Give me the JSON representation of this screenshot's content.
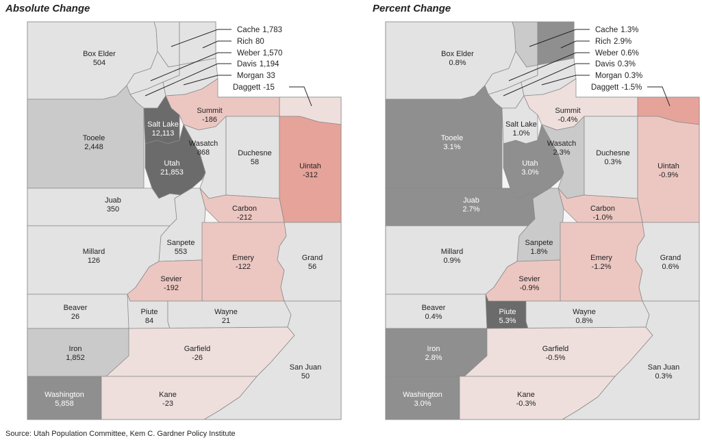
{
  "maps": [
    {
      "title": "Absolute Change",
      "counties": [
        {
          "id": "boxelder",
          "name": "Box Elder",
          "value": "504",
          "class": "g1"
        },
        {
          "id": "cache",
          "name": "Cache",
          "value": "1,783",
          "class": "g1"
        },
        {
          "id": "rich",
          "name": "Rich",
          "value": "80",
          "class": "g1"
        },
        {
          "id": "weber",
          "name": "Weber",
          "value": "1,570",
          "class": "g1"
        },
        {
          "id": "davis",
          "name": "Davis",
          "value": "1,194",
          "class": "g1"
        },
        {
          "id": "morgan",
          "name": "Morgan",
          "value": "33",
          "class": "g1"
        },
        {
          "id": "daggett",
          "name": "Daggett",
          "value": "-15",
          "class": "n1"
        },
        {
          "id": "summit",
          "name": "Summit",
          "value": "-186",
          "class": "n2"
        },
        {
          "id": "tooele",
          "name": "Tooele",
          "value": "2,448",
          "class": "g2"
        },
        {
          "id": "saltlake",
          "name": "Salt Lake",
          "value": "12,113",
          "class": "g4"
        },
        {
          "id": "utah",
          "name": "Utah",
          "value": "21,853",
          "class": "g4"
        },
        {
          "id": "wasatch",
          "name": "Wasatch",
          "value": "868",
          "class": "g1"
        },
        {
          "id": "duchesne",
          "name": "Duchesne",
          "value": "58",
          "class": "g1"
        },
        {
          "id": "uintah",
          "name": "Uintah",
          "value": "-312",
          "class": "n3"
        },
        {
          "id": "juab",
          "name": "Juab",
          "value": "350",
          "class": "g1"
        },
        {
          "id": "carbon",
          "name": "Carbon",
          "value": "-212",
          "class": "n2"
        },
        {
          "id": "millard",
          "name": "Millard",
          "value": "126",
          "class": "g1"
        },
        {
          "id": "sanpete",
          "name": "Sanpete",
          "value": "553",
          "class": "g1"
        },
        {
          "id": "emery",
          "name": "Emery",
          "value": "-122",
          "class": "n2"
        },
        {
          "id": "grand",
          "name": "Grand",
          "value": "56",
          "class": "g1"
        },
        {
          "id": "sevier",
          "name": "Sevier",
          "value": "-192",
          "class": "n2"
        },
        {
          "id": "beaver",
          "name": "Beaver",
          "value": "26",
          "class": "g1"
        },
        {
          "id": "piute",
          "name": "Piute",
          "value": "84",
          "class": "g1"
        },
        {
          "id": "wayne",
          "name": "Wayne",
          "value": "21",
          "class": "g1"
        },
        {
          "id": "iron",
          "name": "Iron",
          "value": "1,852",
          "class": "g2"
        },
        {
          "id": "garfield",
          "name": "Garfield",
          "value": "-26",
          "class": "n1"
        },
        {
          "id": "sanjuan",
          "name": "San Juan",
          "value": "50",
          "class": "g1"
        },
        {
          "id": "washington",
          "name": "Washington",
          "value": "5,858",
          "class": "g3"
        },
        {
          "id": "kane",
          "name": "Kane",
          "value": "-23",
          "class": "n1"
        }
      ]
    },
    {
      "title": "Percent Change",
      "counties": [
        {
          "id": "boxelder",
          "name": "Box Elder",
          "value": "0.8%",
          "class": "g1"
        },
        {
          "id": "cache",
          "name": "Cache",
          "value": "1.3%",
          "class": "g2"
        },
        {
          "id": "rich",
          "name": "Rich",
          "value": "2.9%",
          "class": "g3"
        },
        {
          "id": "weber",
          "name": "Weber",
          "value": "0.6%",
          "class": "g1"
        },
        {
          "id": "davis",
          "name": "Davis",
          "value": "0.3%",
          "class": "g1"
        },
        {
          "id": "morgan",
          "name": "Morgan",
          "value": "0.3%",
          "class": "g1"
        },
        {
          "id": "daggett",
          "name": "Daggett",
          "value": "-1.5%",
          "class": "n3"
        },
        {
          "id": "summit",
          "name": "Summit",
          "value": "-0.4%",
          "class": "n1"
        },
        {
          "id": "tooele",
          "name": "Tooele",
          "value": "3.1%",
          "class": "g3"
        },
        {
          "id": "saltlake",
          "name": "Salt Lake",
          "value": "1.0%",
          "class": "g1"
        },
        {
          "id": "utah",
          "name": "Utah",
          "value": "3.0%",
          "class": "g3"
        },
        {
          "id": "wasatch",
          "name": "Wasatch",
          "value": "2.3%",
          "class": "g2"
        },
        {
          "id": "duchesne",
          "name": "Duchesne",
          "value": "0.3%",
          "class": "g1"
        },
        {
          "id": "uintah",
          "name": "Uintah",
          "value": "-0.9%",
          "class": "n2"
        },
        {
          "id": "juab",
          "name": "Juab",
          "value": "2.7%",
          "class": "g3"
        },
        {
          "id": "carbon",
          "name": "Carbon",
          "value": "-1.0%",
          "class": "n2"
        },
        {
          "id": "millard",
          "name": "Millard",
          "value": "0.9%",
          "class": "g1"
        },
        {
          "id": "sanpete",
          "name": "Sanpete",
          "value": "1.8%",
          "class": "g2"
        },
        {
          "id": "emery",
          "name": "Emery",
          "value": "-1.2%",
          "class": "n2"
        },
        {
          "id": "grand",
          "name": "Grand",
          "value": "0.6%",
          "class": "g1"
        },
        {
          "id": "sevier",
          "name": "Sevier",
          "value": "-0.9%",
          "class": "n2"
        },
        {
          "id": "beaver",
          "name": "Beaver",
          "value": "0.4%",
          "class": "g1"
        },
        {
          "id": "piute",
          "name": "Piute",
          "value": "5.3%",
          "class": "g4"
        },
        {
          "id": "wayne",
          "name": "Wayne",
          "value": "0.8%",
          "class": "g1"
        },
        {
          "id": "iron",
          "name": "Iron",
          "value": "2.8%",
          "class": "g3"
        },
        {
          "id": "garfield",
          "name": "Garfield",
          "value": "-0.5%",
          "class": "n1"
        },
        {
          "id": "sanjuan",
          "name": "San Juan",
          "value": "0.3%",
          "class": "g1"
        },
        {
          "id": "washington",
          "name": "Washington",
          "value": "3.0%",
          "class": "g3"
        },
        {
          "id": "kane",
          "name": "Kane",
          "value": "-0.3%",
          "class": "n1"
        }
      ]
    }
  ],
  "palette": {
    "g1": "#e3e3e3",
    "g2": "#cacaca",
    "g3": "#8f8f8f",
    "g4": "#6b6b6b",
    "n1": "#eedfdd",
    "n2": "#ecc7c2",
    "n3": "#e6a39a",
    "stroke": "#8a8a8a",
    "border": "#bbbbbb"
  },
  "source": "Source: Utah Population Committee,  Kem C. Gardner Policy Institute"
}
